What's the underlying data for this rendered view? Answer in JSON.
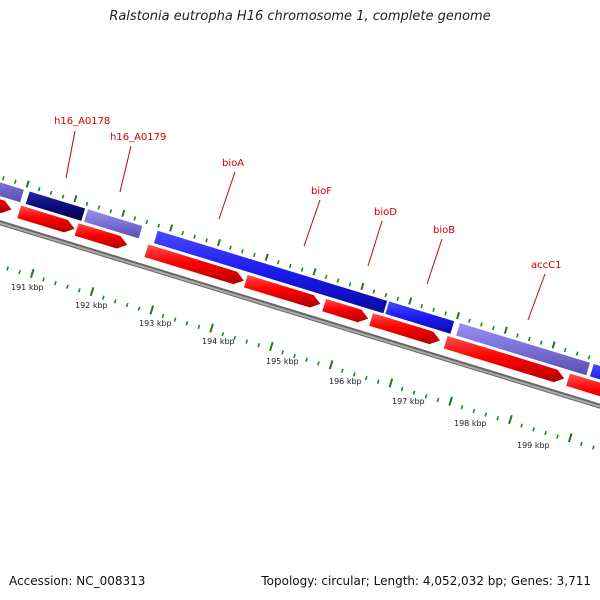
{
  "title": "Ralstonia eutropha H16 chromosome 1, complete genome",
  "accession": "Accession: NC_008313",
  "info": "Topology: circular; Length: 4,052,032 bp; Genes: 3,711",
  "gene_labels": [
    "h16_A0178",
    "h16_A0179",
    "bioA",
    "bioF",
    "bioD",
    "bioB",
    "accC1"
  ],
  "kbp_labels": [
    "191 kbp",
    "192 kbp",
    "193 kbp",
    "194 kbp",
    "195 kbp",
    "196 kbp",
    "197 kbp",
    "198 kbp",
    "199 kbp"
  ],
  "colors": {
    "backbone": "#888888",
    "cds_arrow": "#ff0000",
    "gene_blue": "#1a1aee",
    "gene_slate": "#7a6fd8",
    "gene_navy": "#0a0a7a",
    "tick_major": "#1a7a1a",
    "tick_minor": "#1a8a1a",
    "label_red": "#cc0000"
  }
}
